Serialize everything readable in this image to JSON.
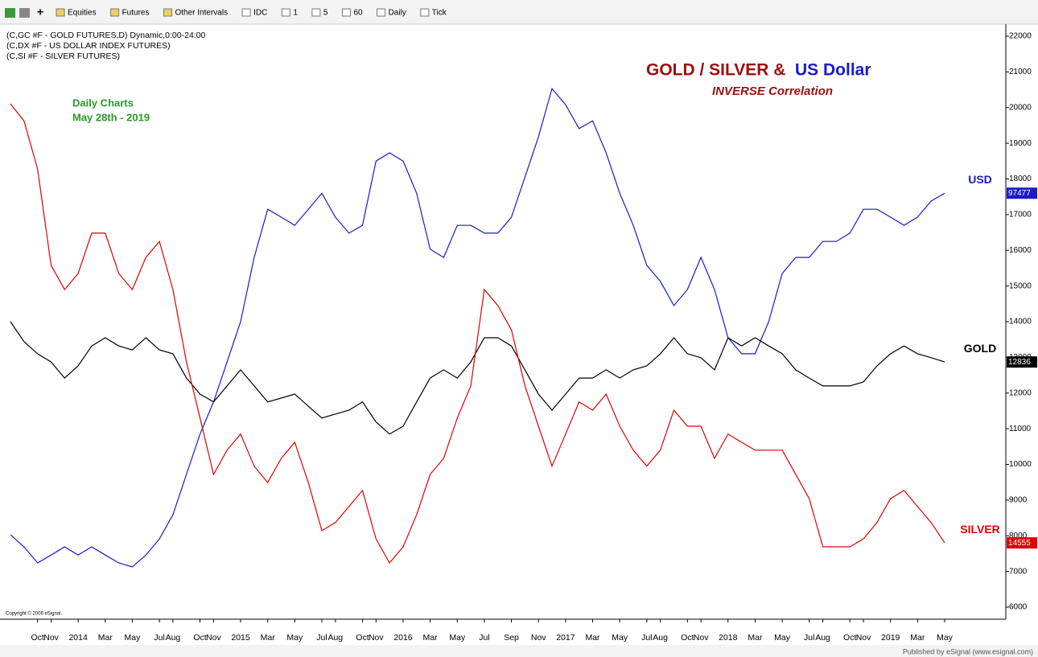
{
  "toolbar": {
    "items": [
      "Equities",
      "Futures",
      "Other Intervals",
      "IDC",
      "1",
      "5",
      "60",
      "Daily",
      "Tick"
    ]
  },
  "chart_data": {
    "type": "line",
    "symbols": [
      "(C,GC #F - GOLD FUTURES,D) Dynamic,0:00-24:00",
      "(C,DX #F - US DOLLAR INDEX FUTURES)",
      "(C,SI #F - SILVER FUTURES)"
    ],
    "title_parts": [
      {
        "text": "GOLD / SILVER &",
        "color": "#9b1010"
      },
      {
        "text": "US Dollar",
        "color": "#1a1acc"
      }
    ],
    "subtitle": "INVERSE Correlation",
    "annotation": [
      "Daily Charts",
      "May 28th - 2019"
    ],
    "copyright": "Copyright © 2006 eSignal.",
    "footer": "Published by eSignal (www.esignal.com)",
    "x": [
      "2013-08",
      "2013-09",
      "2013-10",
      "2013-11",
      "2013-12",
      "2014-01",
      "2014-02",
      "2014-03",
      "2014-04",
      "2014-05",
      "2014-06",
      "2014-07",
      "2014-08",
      "2014-09",
      "2014-10",
      "2014-11",
      "2014-12",
      "2015-01",
      "2015-02",
      "2015-03",
      "2015-04",
      "2015-05",
      "2015-06",
      "2015-07",
      "2015-08",
      "2015-09",
      "2015-10",
      "2015-11",
      "2015-12",
      "2016-01",
      "2016-02",
      "2016-03",
      "2016-04",
      "2016-05",
      "2016-06",
      "2016-07",
      "2016-08",
      "2016-09",
      "2016-10",
      "2016-11",
      "2016-12",
      "2017-01",
      "2017-02",
      "2017-03",
      "2017-04",
      "2017-05",
      "2017-06",
      "2017-07",
      "2017-08",
      "2017-09",
      "2017-10",
      "2017-11",
      "2017-12",
      "2018-01",
      "2018-02",
      "2018-03",
      "2018-04",
      "2018-05",
      "2018-06",
      "2018-07",
      "2018-08",
      "2018-09",
      "2018-10",
      "2018-11",
      "2018-12",
      "2019-01",
      "2019-02",
      "2019-03",
      "2019-04",
      "2019-05"
    ],
    "series": [
      {
        "name": "USD",
        "color": "#1a1acc",
        "last_label": "97477",
        "values": [
          8030,
          7690,
          7240,
          7460,
          7690,
          7460,
          7690,
          7460,
          7240,
          7130,
          7460,
          7910,
          8590,
          9720,
          10850,
          11750,
          12870,
          14000,
          15800,
          17150,
          16930,
          16700,
          17150,
          17600,
          16930,
          16480,
          16700,
          18500,
          18730,
          18500,
          17600,
          16030,
          15800,
          16700,
          16700,
          16480,
          16480,
          16930,
          18050,
          19180,
          20530,
          20080,
          19410,
          19630,
          18730,
          17600,
          16700,
          15580,
          15130,
          14450,
          14900,
          15800,
          14900,
          13550,
          13100,
          13100,
          14000,
          15350,
          15800,
          15800,
          16250,
          16250,
          16480,
          17150,
          17150,
          16930,
          16700,
          16930,
          17380,
          17600
        ]
      },
      {
        "name": "GOLD",
        "color": "#000000",
        "last_label": "12836",
        "values": [
          14000,
          13440,
          13100,
          12870,
          12420,
          12760,
          13320,
          13550,
          13320,
          13210,
          13550,
          13210,
          13100,
          12420,
          11970,
          11750,
          12200,
          12650,
          12200,
          11750,
          11860,
          11970,
          11630,
          11300,
          11410,
          11520,
          11750,
          11190,
          10850,
          11070,
          11750,
          12420,
          12650,
          12420,
          12870,
          13550,
          13550,
          13320,
          12650,
          11970,
          11520,
          11970,
          12420,
          12420,
          12650,
          12420,
          12650,
          12760,
          13100,
          13550,
          13100,
          12990,
          12650,
          13550,
          13320,
          13550,
          13320,
          13100,
          12650,
          12420,
          12200,
          12200,
          12200,
          12310,
          12760,
          13100,
          13320,
          13100,
          12990,
          12870
        ]
      },
      {
        "name": "SILVER",
        "color": "#e00000",
        "last_label": "14555",
        "values": [
          20100,
          19630,
          18280,
          15580,
          14900,
          15350,
          16480,
          16480,
          15350,
          14900,
          15800,
          16250,
          14900,
          12870,
          11300,
          9720,
          10400,
          10850,
          9950,
          9490,
          10170,
          10620,
          9490,
          8140,
          8370,
          8820,
          9270,
          7910,
          7240,
          7690,
          8590,
          9720,
          10170,
          11300,
          12200,
          14900,
          14450,
          13770,
          12200,
          11070,
          9950,
          10850,
          11750,
          11520,
          11970,
          11070,
          10400,
          9950,
          10400,
          11520,
          11070,
          11070,
          10170,
          10850,
          10620,
          10400,
          10400,
          10400,
          9720,
          9040,
          7690,
          7690,
          7690,
          7910,
          8370,
          9040,
          9270,
          8820,
          8370,
          7800
        ]
      }
    ],
    "ylim": [
      6000,
      22000
    ],
    "yticks": [
      6000,
      7000,
      8000,
      9000,
      10000,
      11000,
      12000,
      13000,
      14000,
      15000,
      16000,
      17000,
      18000,
      19000,
      20000,
      21000,
      22000
    ],
    "xticks": [
      {
        "value": "2013-10",
        "label": "Oct"
      },
      {
        "value": "2013-11",
        "label": "Nov"
      },
      {
        "value": "2014-01",
        "label": "2014"
      },
      {
        "value": "2014-03",
        "label": "Mar"
      },
      {
        "value": "2014-05",
        "label": "May"
      },
      {
        "value": "2014-07",
        "label": "Jul"
      },
      {
        "value": "2014-08",
        "label": "Aug"
      },
      {
        "value": "2014-10",
        "label": "Oct"
      },
      {
        "value": "2014-11",
        "label": "Nov"
      },
      {
        "value": "2015-01",
        "label": "2015"
      },
      {
        "value": "2015-03",
        "label": "Mar"
      },
      {
        "value": "2015-05",
        "label": "May"
      },
      {
        "value": "2015-07",
        "label": "Jul"
      },
      {
        "value": "2015-08",
        "label": "Aug"
      },
      {
        "value": "2015-10",
        "label": "Oct"
      },
      {
        "value": "2015-11",
        "label": "Nov"
      },
      {
        "value": "2016-01",
        "label": "2016"
      },
      {
        "value": "2016-03",
        "label": "Mar"
      },
      {
        "value": "2016-05",
        "label": "May"
      },
      {
        "value": "2016-07",
        "label": "Jul"
      },
      {
        "value": "2016-09",
        "label": "Sep"
      },
      {
        "value": "2016-11",
        "label": "Nov"
      },
      {
        "value": "2017-01",
        "label": "2017"
      },
      {
        "value": "2017-03",
        "label": "Mar"
      },
      {
        "value": "2017-05",
        "label": "May"
      },
      {
        "value": "2017-07",
        "label": "Jul"
      },
      {
        "value": "2017-08",
        "label": "Aug"
      },
      {
        "value": "2017-10",
        "label": "Oct"
      },
      {
        "value": "2017-11",
        "label": "Nov"
      },
      {
        "value": "2018-01",
        "label": "2018"
      },
      {
        "value": "2018-03",
        "label": "Mar"
      },
      {
        "value": "2018-05",
        "label": "May"
      },
      {
        "value": "2018-07",
        "label": "Jul"
      },
      {
        "value": "2018-08",
        "label": "Aug"
      },
      {
        "value": "2018-10",
        "label": "Oct"
      },
      {
        "value": "2018-11",
        "label": "Nov"
      },
      {
        "value": "2019-01",
        "label": "2019"
      },
      {
        "value": "2019-03",
        "label": "Mar"
      },
      {
        "value": "2019-05",
        "label": "May"
      }
    ],
    "grid": false
  }
}
